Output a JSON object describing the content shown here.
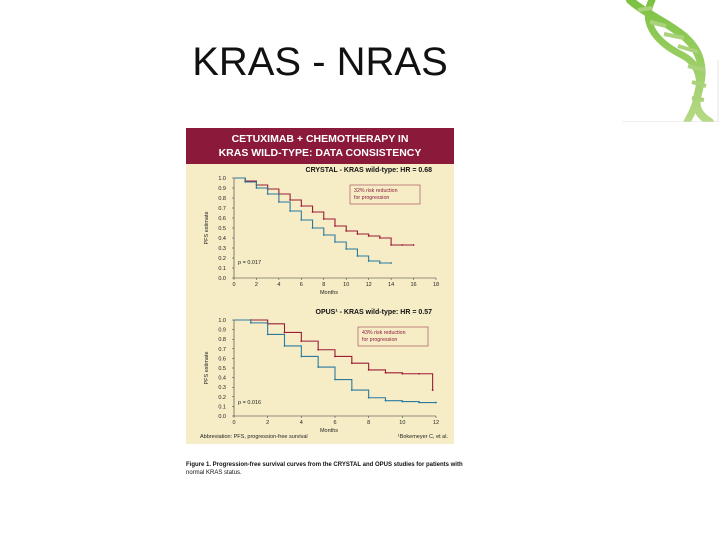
{
  "slide": {
    "title": "KRAS - NRAS"
  },
  "figure": {
    "header_line1": "CETUXIMAB + CHEMOTHERAPY IN",
    "header_line2": "KRAS WILD-TYPE: DATA CONSISTENCY",
    "abbreviation": "Abbreviation: PFS, progression-free survival",
    "citation": "¹Bokemeyer C, et al.",
    "caption_bold": "Figure 1. Progression-free survival curves from the CRYSTAL and OPUS studies for patients with",
    "caption_line2": "normal KRAS status.",
    "colors": {
      "header": "#8b1a3a",
      "panel": "#f6edc7",
      "red_curve": "#9b1b34",
      "blue_curve": "#2a7aa0"
    }
  },
  "chart_data": [
    {
      "type": "line",
      "title": "CRYSTAL - KRAS wild-type: HR = 0.68",
      "ylabel": "PFS estimate",
      "xlabel": "Months",
      "ylim": [
        0,
        1.0
      ],
      "xlim": [
        0,
        18
      ],
      "xticks": [
        "0",
        "2",
        "4",
        "6",
        "8",
        "10",
        "12",
        "14",
        "16",
        "18"
      ],
      "yticks": [
        "0.0",
        "0.1",
        "0.2",
        "0.3",
        "0.4",
        "0.5",
        "0.6",
        "0.7",
        "0.8",
        "0.9",
        "1.0"
      ],
      "annotation_lines": [
        "32% risk reduction",
        "for progression"
      ],
      "p_value": "p = 0.017",
      "series": [
        {
          "color": "red",
          "x": [
            0,
            1,
            2,
            3,
            4,
            5,
            6,
            7,
            8,
            9,
            10,
            11,
            12,
            13,
            14,
            15,
            16
          ],
          "y": [
            1.0,
            0.97,
            0.93,
            0.89,
            0.84,
            0.78,
            0.72,
            0.66,
            0.59,
            0.52,
            0.47,
            0.44,
            0.42,
            0.4,
            0.33,
            0.33,
            0.33
          ]
        },
        {
          "color": "blue",
          "x": [
            0,
            1,
            2,
            3,
            4,
            5,
            6,
            7,
            8,
            9,
            10,
            11,
            12,
            13,
            14
          ],
          "y": [
            1.0,
            0.96,
            0.9,
            0.84,
            0.76,
            0.67,
            0.58,
            0.5,
            0.43,
            0.36,
            0.29,
            0.22,
            0.17,
            0.15,
            0.15
          ]
        }
      ]
    },
    {
      "type": "line",
      "title": "OPUS¹ - KRAS wild-type: HR = 0.57",
      "ylabel": "PFS estimate",
      "xlabel": "Months",
      "ylim": [
        0,
        1.0
      ],
      "xlim": [
        0,
        12
      ],
      "xticks": [
        "0",
        "2",
        "4",
        "6",
        "8",
        "10",
        "12"
      ],
      "yticks": [
        "0.0",
        "0.1",
        "0.2",
        "0.3",
        "0.4",
        "0.5",
        "0.6",
        "0.7",
        "0.8",
        "0.9",
        "1.0"
      ],
      "annotation_lines": [
        "43% risk reduction",
        "for progression"
      ],
      "p_value": "p = 0.016",
      "series": [
        {
          "color": "red",
          "x": [
            0,
            1,
            2,
            3,
            4,
            5,
            6,
            7,
            8,
            9,
            10,
            11,
            11.8
          ],
          "y": [
            1.0,
            1.0,
            0.96,
            0.87,
            0.78,
            0.69,
            0.62,
            0.55,
            0.48,
            0.45,
            0.44,
            0.44,
            0.27
          ]
        },
        {
          "color": "blue",
          "x": [
            0,
            1,
            2,
            3,
            4,
            5,
            6,
            7,
            8,
            9,
            10,
            11,
            12
          ],
          "y": [
            1.0,
            0.97,
            0.85,
            0.73,
            0.62,
            0.51,
            0.38,
            0.27,
            0.19,
            0.16,
            0.15,
            0.14,
            0.14
          ]
        }
      ]
    }
  ]
}
